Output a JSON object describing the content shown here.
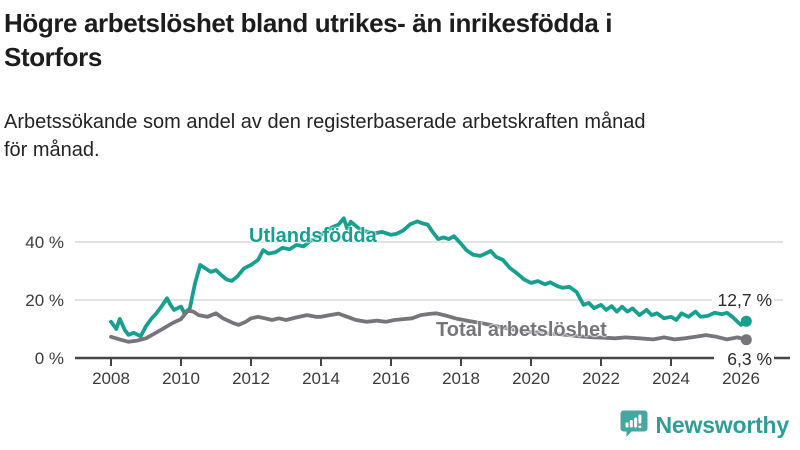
{
  "header": {
    "title": "Högre arbetslöshet bland utrikes- än inrikesfödda i Storfors",
    "title_lines": [
      "Högre arbetslöshet bland utrikes- än inrikesfödda i",
      "Storfors"
    ],
    "subtitle_lines": [
      "Arbetssökande som andel av den registerbaserade arbetskraften månad",
      "för månad."
    ]
  },
  "branding": {
    "logo_text": "Newsworthy"
  },
  "colors": {
    "foreign_born": "#17A08F",
    "total": "#76757B",
    "grid": "#DADADA",
    "axis": "#454545",
    "logo": "#45A7A1",
    "logo_text": "#2F9D98"
  },
  "chart_data": {
    "type": "line",
    "title": "",
    "xlabel": "",
    "ylabel": "",
    "grid": true,
    "legend_position": "inline-labels",
    "xlim": [
      2007,
      2027.4
    ],
    "ylim": [
      0,
      50
    ],
    "x_axis": {
      "ticks": [
        2008,
        2010,
        2012,
        2014,
        2016,
        2018,
        2020,
        2022,
        2024,
        2026
      ]
    },
    "y_axis": {
      "ticks": [
        0,
        20,
        40
      ],
      "tick_suffix": " %"
    },
    "series": [
      {
        "name": "Utlandsfödda",
        "color": "#17A08F",
        "end_label": "12,7 %",
        "end_value": 12.7,
        "x": [
          2008.0,
          2008.15,
          2008.25,
          2008.4,
          2008.5,
          2008.65,
          2008.85,
          2009.0,
          2009.15,
          2009.3,
          2009.45,
          2009.6,
          2009.7,
          2009.8,
          2009.95,
          2010.0,
          2010.1,
          2010.25,
          2010.4,
          2010.55,
          2010.7,
          2010.85,
          2011.0,
          2011.15,
          2011.3,
          2011.45,
          2011.6,
          2011.8,
          2012.0,
          2012.2,
          2012.35,
          2012.5,
          2012.7,
          2012.9,
          2013.1,
          2013.3,
          2013.5,
          2013.7,
          2013.9,
          2014.1,
          2014.3,
          2014.5,
          2014.65,
          2014.75,
          2014.85,
          2015.0,
          2015.15,
          2015.35,
          2015.55,
          2015.75,
          2016.0,
          2016.15,
          2016.35,
          2016.55,
          2016.75,
          2016.9,
          2017.05,
          2017.2,
          2017.35,
          2017.5,
          2017.65,
          2017.8,
          2018.0,
          2018.15,
          2018.35,
          2018.55,
          2018.7,
          2018.85,
          2019.0,
          2019.2,
          2019.4,
          2019.6,
          2019.8,
          2020.0,
          2020.2,
          2020.4,
          2020.55,
          2020.75,
          2020.9,
          2021.1,
          2021.3,
          2021.5,
          2021.65,
          2021.8,
          2022.0,
          2022.15,
          2022.3,
          2022.45,
          2022.6,
          2022.75,
          2022.9,
          2023.1,
          2023.3,
          2023.45,
          2023.6,
          2023.8,
          2024.0,
          2024.15,
          2024.3,
          2024.5,
          2024.7,
          2024.85,
          2025.05,
          2025.25,
          2025.45,
          2025.6,
          2025.75,
          2025.9,
          2026.0,
          2026.15
        ],
        "values": [
          12.5,
          10.0,
          13.5,
          9.5,
          8.0,
          8.7,
          7.5,
          11.0,
          13.5,
          15.5,
          17.9,
          20.6,
          18.3,
          16.6,
          17.5,
          17.7,
          15.4,
          17.1,
          25.7,
          32.1,
          30.9,
          29.7,
          30.3,
          28.6,
          27.1,
          26.6,
          28.0,
          30.9,
          32.1,
          33.8,
          37.2,
          36.0,
          36.5,
          38.0,
          37.5,
          39.0,
          38.5,
          40.5,
          41.5,
          43.5,
          45.0,
          46.0,
          48.2,
          44.5,
          47.0,
          45.5,
          44.0,
          43.5,
          43.0,
          43.5,
          42.5,
          42.8,
          44.0,
          46.1,
          47.1,
          46.4,
          46.0,
          43.3,
          41.0,
          41.6,
          41.0,
          42.0,
          39.4,
          37.2,
          35.6,
          35.2,
          36.0,
          36.9,
          34.9,
          33.8,
          31.0,
          29.2,
          27.1,
          25.9,
          26.5,
          25.4,
          26.1,
          24.8,
          24.2,
          24.5,
          22.8,
          18.3,
          19.0,
          17.2,
          18.3,
          16.6,
          17.9,
          16.0,
          17.7,
          16.0,
          17.1,
          14.8,
          16.6,
          14.8,
          15.4,
          13.7,
          14.2,
          13.1,
          15.4,
          14.2,
          16.0,
          14.2,
          14.5,
          15.6,
          15.1,
          15.6,
          14.2,
          12.5,
          11.4,
          12.7
        ]
      },
      {
        "name": "Total arbetslöshet",
        "color": "#76757B",
        "end_label": "6,3 %",
        "end_value": 6.3,
        "x": [
          2008.0,
          2008.25,
          2008.5,
          2008.75,
          2009.0,
          2009.25,
          2009.5,
          2009.75,
          2010.0,
          2010.2,
          2010.35,
          2010.5,
          2010.75,
          2011.0,
          2011.2,
          2011.5,
          2011.65,
          2011.85,
          2012.0,
          2012.2,
          2012.4,
          2012.6,
          2012.8,
          2013.0,
          2013.3,
          2013.6,
          2013.85,
          2014.0,
          2014.25,
          2014.5,
          2014.75,
          2015.0,
          2015.3,
          2015.6,
          2015.85,
          2016.1,
          2016.35,
          2016.6,
          2016.85,
          2017.1,
          2017.3,
          2017.6,
          2017.9,
          2018.2,
          2018.6,
          2019.0,
          2019.4,
          2019.8,
          2020.2,
          2020.6,
          2021.0,
          2021.4,
          2021.8,
          2022.1,
          2022.4,
          2022.7,
          2023.1,
          2023.5,
          2023.8,
          2024.1,
          2024.4,
          2024.7,
          2025.0,
          2025.3,
          2025.6,
          2025.9,
          2026.15
        ],
        "values": [
          7.3,
          6.4,
          5.6,
          6.0,
          6.8,
          8.5,
          10.2,
          12.0,
          13.4,
          16.4,
          16.0,
          14.8,
          14.2,
          15.4,
          13.7,
          12.0,
          11.4,
          12.5,
          13.7,
          14.2,
          13.7,
          13.1,
          13.7,
          13.1,
          14.0,
          14.8,
          14.2,
          14.2,
          14.8,
          15.3,
          14.2,
          13.1,
          12.5,
          12.9,
          12.5,
          13.1,
          13.4,
          13.7,
          14.8,
          15.2,
          15.4,
          14.5,
          13.5,
          12.8,
          12.0,
          11.0,
          10.0,
          9.2,
          8.8,
          8.4,
          8.0,
          7.5,
          7.1,
          7.0,
          6.8,
          7.1,
          6.8,
          6.4,
          7.1,
          6.4,
          6.8,
          7.3,
          7.9,
          7.3,
          6.4,
          7.1,
          6.3
        ]
      }
    ]
  }
}
